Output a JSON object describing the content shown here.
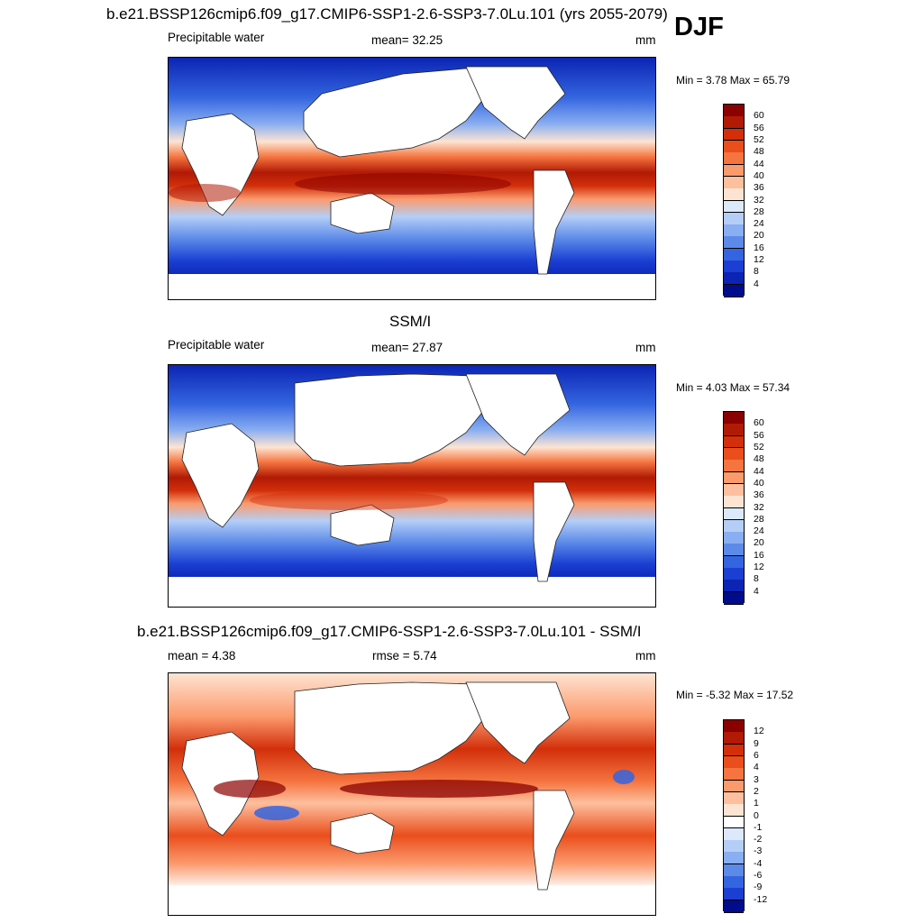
{
  "figure": {
    "season_label": "DJF",
    "units": "mm"
  },
  "panels": [
    {
      "id": "model",
      "title": "b.e21.BSSP126cmip6.f09_g17.CMIP6-SSP1-2.6-SSP3-7.0Lu.101 (yrs 2055-2079)",
      "variable": "Precipitable water",
      "stat_left": "",
      "stat_mid": "mean=  32.25",
      "units": "mm",
      "minmax": "Min =   3.78 Max =  65.79"
    },
    {
      "id": "obs",
      "title": "SSM/I",
      "variable": "Precipitable water",
      "stat_left": "",
      "stat_mid": "mean=  27.87",
      "units": "mm",
      "minmax": "Min =   4.03 Max =  57.34"
    },
    {
      "id": "diff",
      "title": "b.e21.BSSP126cmip6.f09_g17.CMIP6-SSP1-2.6-SSP3-7.0Lu.101 - SSM/I",
      "variable": "",
      "stat_left": "mean =   4.38",
      "stat_mid": "rmse =   5.74",
      "units": "mm",
      "minmax": "Min =  -5.32 Max =  17.52"
    }
  ],
  "chart_data": [
    {
      "type": "heatmap",
      "title": "b.e21.BSSP126cmip6.f09_g17.CMIP6-SSP1-2.6-SSP3-7.0Lu.101 (yrs 2055-2079)",
      "variable": "Precipitable water",
      "units": "mm",
      "mean": 32.25,
      "min": 3.78,
      "max": 65.79,
      "colorbar": {
        "levels": [
          4,
          8,
          12,
          16,
          20,
          24,
          28,
          32,
          36,
          40,
          44,
          48,
          52,
          56,
          60
        ],
        "labels": [
          "60",
          "56",
          "52",
          "48",
          "44",
          "40",
          "36",
          "32",
          "28",
          "24",
          "20",
          "16",
          "12",
          "8",
          "4"
        ],
        "colors": [
          "#8b0000",
          "#b11a05",
          "#d22f0a",
          "#ea4e1c",
          "#f5743f",
          "#fb9a6d",
          "#fdbf9e",
          "#fde4d2",
          "#dce9fb",
          "#b4cef7",
          "#89aef1",
          "#5c8ae9",
          "#3465e0",
          "#1a3fd2",
          "#0b24b4",
          "#000c8c"
        ]
      }
    },
    {
      "type": "heatmap",
      "title": "SSM/I",
      "variable": "Precipitable water",
      "units": "mm",
      "mean": 27.87,
      "min": 4.03,
      "max": 57.34,
      "colorbar": {
        "levels": [
          4,
          8,
          12,
          16,
          20,
          24,
          28,
          32,
          36,
          40,
          44,
          48,
          52,
          56,
          60
        ],
        "labels": [
          "60",
          "56",
          "52",
          "48",
          "44",
          "40",
          "36",
          "32",
          "28",
          "24",
          "20",
          "16",
          "12",
          "8",
          "4"
        ],
        "colors": [
          "#8b0000",
          "#b11a05",
          "#d22f0a",
          "#ea4e1c",
          "#f5743f",
          "#fb9a6d",
          "#fdbf9e",
          "#fde4d2",
          "#dce9fb",
          "#b4cef7",
          "#89aef1",
          "#5c8ae9",
          "#3465e0",
          "#1a3fd2",
          "#0b24b4",
          "#000c8c"
        ]
      }
    },
    {
      "type": "heatmap",
      "title": "b.e21.BSSP126cmip6.f09_g17.CMIP6-SSP1-2.6-SSP3-7.0Lu.101 - SSM/I",
      "units": "mm",
      "mean": 4.38,
      "rmse": 5.74,
      "min": -5.32,
      "max": 17.52,
      "colorbar": {
        "levels": [
          -12,
          -9,
          -6,
          -4,
          -3,
          -2,
          -1,
          0,
          1,
          2,
          3,
          4,
          6,
          9,
          12
        ],
        "labels": [
          "12",
          "9",
          "6",
          "4",
          "3",
          "2",
          "1",
          "0",
          "-1",
          "-2",
          "-3",
          "-4",
          "-6",
          "-9",
          "-12"
        ],
        "colors": [
          "#8b0000",
          "#b11a05",
          "#d22f0a",
          "#ea4e1c",
          "#f5743f",
          "#fb9a6d",
          "#fdbf9e",
          "#fde4d2",
          "#ffffff",
          "#dce9fb",
          "#b4cef7",
          "#89aef1",
          "#5c8ae9",
          "#3465e0",
          "#1a3fd2",
          "#000c8c"
        ]
      }
    }
  ]
}
